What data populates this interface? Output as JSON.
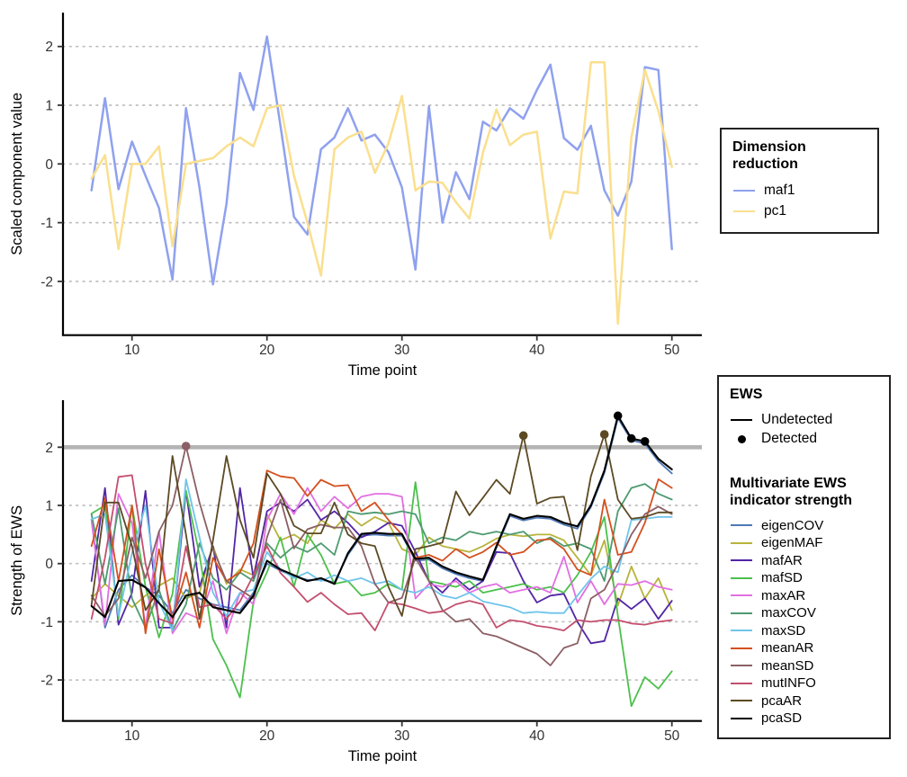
{
  "figure": {
    "top_panel": {
      "xlabel": "Time point",
      "ylabel": "Scaled component value"
    },
    "bottom_panel": {
      "xlabel": "Time point",
      "ylabel": "Strength of EWS"
    },
    "threshold_color": "#b4b4b4",
    "grid_color": "#bfbfbf",
    "axis_color": "#000000",
    "tick_label_color": "#333333"
  },
  "legend_dimension": {
    "title": "Dimension reduction",
    "items": [
      {
        "label": "maf1",
        "color": "#8fa1ee"
      },
      {
        "label": "pc1",
        "color": "#fadf8e"
      }
    ]
  },
  "legend_ews": {
    "title": "EWS",
    "undetected_label": "Undetected",
    "detected_label": "Detected"
  },
  "legend_indicators": {
    "title": "Multivariate EWS indicator strength",
    "items": [
      {
        "label": "eigenCOV",
        "color": "#4e79b6"
      },
      {
        "label": "eigenMAF",
        "color": "#b8b33b"
      },
      {
        "label": "mafAR",
        "color": "#5226a5"
      },
      {
        "label": "mafSD",
        "color": "#4cc04c"
      },
      {
        "label": "maxAR",
        "color": "#e26fe2"
      },
      {
        "label": "maxCOV",
        "color": "#4e9a70"
      },
      {
        "label": "maxSD",
        "color": "#6ec4ea"
      },
      {
        "label": "meanAR",
        "color": "#d4501e"
      },
      {
        "label": "meanSD",
        "color": "#8b5f65"
      },
      {
        "label": "mutINFO",
        "color": "#c44f6e"
      },
      {
        "label": "pcaAR",
        "color": "#5c4a23"
      },
      {
        "label": "pcaSD",
        "color": "#000000"
      }
    ]
  },
  "chart_data": [
    {
      "type": "line",
      "panel": "top",
      "xlabel": "Time point",
      "ylabel": "Scaled component value",
      "x": [
        7,
        8,
        9,
        10,
        11,
        12,
        13,
        14,
        15,
        16,
        17,
        18,
        19,
        20,
        21,
        22,
        23,
        24,
        25,
        26,
        27,
        28,
        29,
        30,
        31,
        32,
        33,
        34,
        35,
        36,
        37,
        38,
        39,
        40,
        41,
        42,
        43,
        44,
        45,
        46,
        47,
        48,
        49,
        50
      ],
      "xticks": [
        10,
        20,
        30,
        40,
        50
      ],
      "yticks": [
        -2,
        -1,
        0,
        1,
        2
      ],
      "xlim": [
        5.5,
        52
      ],
      "ylim": [
        -2.9,
        2.5
      ],
      "grid": "dotted-horizontal",
      "legend_position": "right",
      "series": [
        {
          "name": "maf1",
          "color": "#8fa1ee",
          "values": [
            -0.45,
            1.12,
            -0.43,
            0.38,
            -0.2,
            -0.75,
            -1.97,
            0.95,
            -0.4,
            -2.05,
            -0.68,
            1.55,
            0.92,
            2.17,
            0.65,
            -0.9,
            -1.2,
            0.25,
            0.45,
            0.95,
            0.4,
            0.5,
            0.2,
            -0.4,
            -1.8,
            0.98,
            -1.0,
            -0.14,
            -0.6,
            0.72,
            0.57,
            0.95,
            0.77,
            1.26,
            1.69,
            0.44,
            0.24,
            0.65,
            -0.45,
            -0.88,
            -0.3,
            1.65,
            1.6,
            -1.45
          ]
        },
        {
          "name": "pc1",
          "color": "#fadf8e",
          "values": [
            -0.25,
            0.15,
            -1.45,
            0.0,
            0.0,
            0.3,
            -1.4,
            0.0,
            0.05,
            0.1,
            0.3,
            0.45,
            0.3,
            0.95,
            1.0,
            -0.2,
            -1.0,
            -1.9,
            0.25,
            0.45,
            0.55,
            -0.15,
            0.35,
            1.16,
            -0.45,
            -0.3,
            -0.32,
            -0.65,
            -0.93,
            0.19,
            0.93,
            0.32,
            0.5,
            0.55,
            -1.27,
            -0.47,
            -0.5,
            1.73,
            1.73,
            -2.72,
            0.45,
            1.6,
            0.9,
            -0.05
          ]
        }
      ]
    },
    {
      "type": "line",
      "panel": "bottom",
      "xlabel": "Time point",
      "ylabel": "Strength of EWS",
      "x": [
        7,
        8,
        9,
        10,
        11,
        12,
        13,
        14,
        15,
        16,
        17,
        18,
        19,
        20,
        21,
        22,
        23,
        24,
        25,
        26,
        27,
        28,
        29,
        30,
        31,
        32,
        33,
        34,
        35,
        36,
        37,
        38,
        39,
        40,
        41,
        42,
        43,
        44,
        45,
        46,
        47,
        48,
        49,
        50
      ],
      "xticks": [
        10,
        20,
        30,
        40,
        50
      ],
      "yticks": [
        -2,
        -1,
        0,
        1,
        2
      ],
      "xlim": [
        5.5,
        52
      ],
      "ylim": [
        -2.7,
        2.8
      ],
      "grid": "dotted-horizontal",
      "threshold_line": {
        "y": 2,
        "color": "#b4b4b4"
      },
      "legend_position": "right",
      "series": [
        {
          "name": "eigenCOV",
          "color": "#4e79b6",
          "values": [
            0.76,
            -1.1,
            -0.45,
            -0.2,
            -0.41,
            -0.55,
            -0.85,
            -0.45,
            -0.6,
            -0.7,
            -0.75,
            -0.8,
            -0.5,
            0.0,
            -0.12,
            -0.22,
            -0.28,
            -0.28,
            -0.32,
            0.15,
            0.48,
            0.5,
            0.48,
            0.48,
            0.05,
            0.07,
            -0.08,
            -0.18,
            -0.25,
            -0.3,
            0.27,
            0.82,
            0.74,
            0.79,
            0.77,
            0.67,
            0.6,
            0.97,
            1.56,
            2.5,
            2.12,
            2.06,
            1.76,
            1.55
          ]
        },
        {
          "name": "eigenMAF",
          "color": "#b8b33b",
          "values": [
            -0.6,
            -0.35,
            -0.55,
            -0.75,
            -0.55,
            -0.38,
            -0.25,
            -0.6,
            -0.5,
            0.3,
            -0.35,
            -0.1,
            -0.2,
            0.85,
            0.4,
            0.5,
            0.35,
            0.75,
            0.6,
            0.85,
            0.65,
            0.8,
            0.7,
            0.25,
            0.15,
            0.45,
            0.3,
            0.25,
            0.2,
            0.3,
            0.43,
            0.5,
            0.47,
            0.5,
            0.5,
            0.4,
            0.1,
            -0.2,
            0.4,
            -0.72,
            -0.05,
            -0.6,
            -0.25,
            -0.8
          ]
        },
        {
          "name": "mafAR",
          "color": "#5226a5",
          "values": [
            -0.3,
            1.3,
            -1.05,
            -0.5,
            1.25,
            -1.1,
            -1.1,
            1.25,
            -0.4,
            0.3,
            -1.1,
            1.3,
            -0.25,
            0.9,
            1.05,
            0.9,
            1.1,
            0.75,
            0.9,
            0.7,
            0.45,
            0.55,
            0.7,
            0.65,
            0.2,
            -0.3,
            -0.5,
            -0.25,
            -0.45,
            -0.3,
            0.2,
            0.18,
            -0.3,
            -0.67,
            -0.55,
            -0.52,
            -1.0,
            -1.37,
            -1.33,
            -0.6,
            -0.78,
            -0.6,
            -0.95,
            -0.64
          ]
        },
        {
          "name": "mafSD",
          "color": "#4cc04c",
          "values": [
            0.86,
            1.0,
            -0.95,
            1.0,
            -0.4,
            -1.27,
            -0.52,
            1.25,
            0.15,
            -1.3,
            -1.75,
            -2.3,
            -0.65,
            -0.15,
            0.45,
            -0.4,
            0.5,
            0.15,
            -0.35,
            -0.3,
            -0.55,
            -0.5,
            -0.35,
            -0.45,
            1.4,
            -0.3,
            -0.35,
            -0.4,
            -0.3,
            -0.5,
            -0.45,
            -0.4,
            -0.35,
            -0.45,
            -0.4,
            -0.5,
            -0.2,
            0.2,
            0.8,
            -0.9,
            -2.45,
            -1.95,
            -2.15,
            -1.85
          ]
        },
        {
          "name": "maxAR",
          "color": "#e26fe2",
          "values": [
            0.74,
            -1.05,
            1.2,
            0.7,
            -1.1,
            0.56,
            -1.2,
            -0.85,
            -0.95,
            -0.3,
            -1.2,
            -0.5,
            -0.7,
            0.75,
            1.2,
            0.85,
            1.3,
            0.9,
            1.15,
            0.95,
            1.15,
            1.2,
            1.2,
            1.15,
            -0.6,
            -0.35,
            -0.4,
            -0.3,
            -0.5,
            -0.4,
            -0.35,
            -0.5,
            -0.45,
            -0.4,
            -0.5,
            0.12,
            -0.67,
            -0.3,
            -0.7,
            -0.35,
            -0.37,
            -0.3,
            -0.4,
            -0.45
          ]
        },
        {
          "name": "maxCOV",
          "color": "#4e9a70",
          "values": [
            0.85,
            -0.35,
            0.95,
            -0.6,
            -1.1,
            -0.45,
            -1.15,
            -0.7,
            0.35,
            -0.25,
            -0.45,
            -0.15,
            -0.3,
            0.35,
            0.1,
            0.3,
            0.2,
            0.35,
            0.15,
            0.9,
            0.85,
            0.88,
            0.85,
            0.9,
            0.85,
            0.35,
            0.45,
            0.4,
            0.55,
            0.5,
            0.55,
            0.5,
            0.55,
            0.35,
            0.45,
            0.3,
            0.35,
            0.25,
            -0.3,
            0.9,
            1.3,
            1.37,
            1.2,
            1.1
          ]
        },
        {
          "name": "maxSD",
          "color": "#6ec4ea",
          "values": [
            0.76,
            0.85,
            -0.9,
            0.18,
            1.0,
            -0.66,
            -1.15,
            1.45,
            0.45,
            -0.5,
            -0.9,
            -0.5,
            -0.45,
            0.2,
            -0.1,
            -0.25,
            -0.15,
            -0.3,
            -0.2,
            -0.3,
            -0.25,
            -0.35,
            -0.3,
            -0.45,
            -0.5,
            -0.4,
            -0.55,
            -0.6,
            -0.5,
            -0.65,
            -0.7,
            -0.75,
            -0.85,
            -0.83,
            -0.85,
            -0.85,
            -0.55,
            -0.26,
            -0.05,
            -0.15,
            0.75,
            0.77,
            0.8,
            0.8
          ]
        },
        {
          "name": "meanAR",
          "color": "#d4501e",
          "values": [
            0.3,
            1.13,
            -0.3,
            1.0,
            -1.2,
            0.25,
            -0.95,
            -0.15,
            -1.1,
            0.1,
            -0.3,
            -0.15,
            0.35,
            1.6,
            1.5,
            1.47,
            1.16,
            1.44,
            1.33,
            1.35,
            0.9,
            1.05,
            0.75,
            0.5,
            0.1,
            0.15,
            0.05,
            0.25,
            0.1,
            0.2,
            0.36,
            0.15,
            0.2,
            0.4,
            0.42,
            0.25,
            -0.1,
            -0.2,
            1.1,
            0.15,
            0.2,
            0.7,
            1.45,
            1.3
          ]
        },
        {
          "name": "meanSD",
          "color": "#8b5f65",
          "values": [
            -0.55,
            -0.9,
            -0.6,
            0.45,
            -0.25,
            0.55,
            1.0,
            2.02,
            1.05,
            0.25,
            -0.3,
            -0.45,
            -0.6,
            0.45,
            1.1,
            0.26,
            0.59,
            0.67,
            0.62,
            0.62,
            0.3,
            -0.35,
            -0.67,
            -0.59,
            0.1,
            -0.3,
            -0.8,
            -1.0,
            -0.95,
            -1.2,
            -1.25,
            -1.35,
            -1.45,
            -1.55,
            -1.75,
            -1.45,
            -1.37,
            -0.6,
            -0.45,
            0.0,
            0.5,
            0.85,
            0.98,
            0.85
          ]
        },
        {
          "name": "mutINFO",
          "color": "#c44f6e",
          "values": [
            -0.95,
            0.1,
            1.49,
            1.52,
            0.0,
            -0.95,
            -1.03,
            0.3,
            -0.75,
            -0.7,
            -0.95,
            -0.65,
            -0.2,
            0.3,
            -0.16,
            -0.4,
            -0.66,
            -0.5,
            -0.7,
            -0.87,
            -0.85,
            -1.15,
            -0.67,
            -0.7,
            -0.77,
            -0.85,
            -0.82,
            -0.7,
            -0.64,
            -0.7,
            -1.1,
            -0.97,
            -1.0,
            -1.07,
            -1.1,
            -1.15,
            -0.97,
            -1.0,
            -0.97,
            -0.97,
            -1.03,
            -1.05,
            -1.0,
            -0.97
          ]
        },
        {
          "name": "pcaAR",
          "color": "#5c4a23",
          "values": [
            -0.71,
            1.05,
            1.05,
            0.3,
            -0.8,
            -0.45,
            1.85,
            0.5,
            -0.95,
            0.4,
            1.85,
            0.75,
            0.1,
            1.55,
            1.2,
            0.65,
            0.52,
            0.52,
            1.05,
            0.5,
            0.35,
            0.3,
            -0.4,
            -0.9,
            0.25,
            0.3,
            0.36,
            1.24,
            0.83,
            1.13,
            1.44,
            1.2,
            2.2,
            1.03,
            1.13,
            1.15,
            0.23,
            1.5,
            2.22,
            1.1,
            0.77,
            0.8,
            0.88,
            0.88
          ]
        },
        {
          "name": "pcaSD",
          "color": "#000000",
          "values": [
            -0.73,
            -0.92,
            -0.3,
            -0.28,
            -0.41,
            -0.68,
            -0.92,
            -0.55,
            -0.5,
            -0.75,
            -0.8,
            -0.85,
            -0.55,
            0.05,
            -0.1,
            -0.2,
            -0.3,
            -0.25,
            -0.35,
            0.18,
            0.51,
            0.53,
            0.51,
            0.51,
            0.08,
            0.1,
            -0.05,
            -0.15,
            -0.22,
            -0.28,
            0.3,
            0.85,
            0.77,
            0.82,
            0.8,
            0.7,
            0.64,
            1.0,
            1.6,
            2.54,
            2.15,
            2.1,
            1.8,
            1.62
          ]
        }
      ],
      "detected_points": [
        {
          "series": "meanSD",
          "x": 14,
          "y": 2.02
        },
        {
          "series": "pcaAR",
          "x": 39,
          "y": 2.2
        },
        {
          "series": "pcaAR",
          "x": 45,
          "y": 2.22
        },
        {
          "series": "pcaSD",
          "x": 46,
          "y": 2.54
        },
        {
          "series": "pcaSD",
          "x": 47,
          "y": 2.15
        },
        {
          "series": "pcaSD",
          "x": 48,
          "y": 2.1
        }
      ]
    }
  ]
}
